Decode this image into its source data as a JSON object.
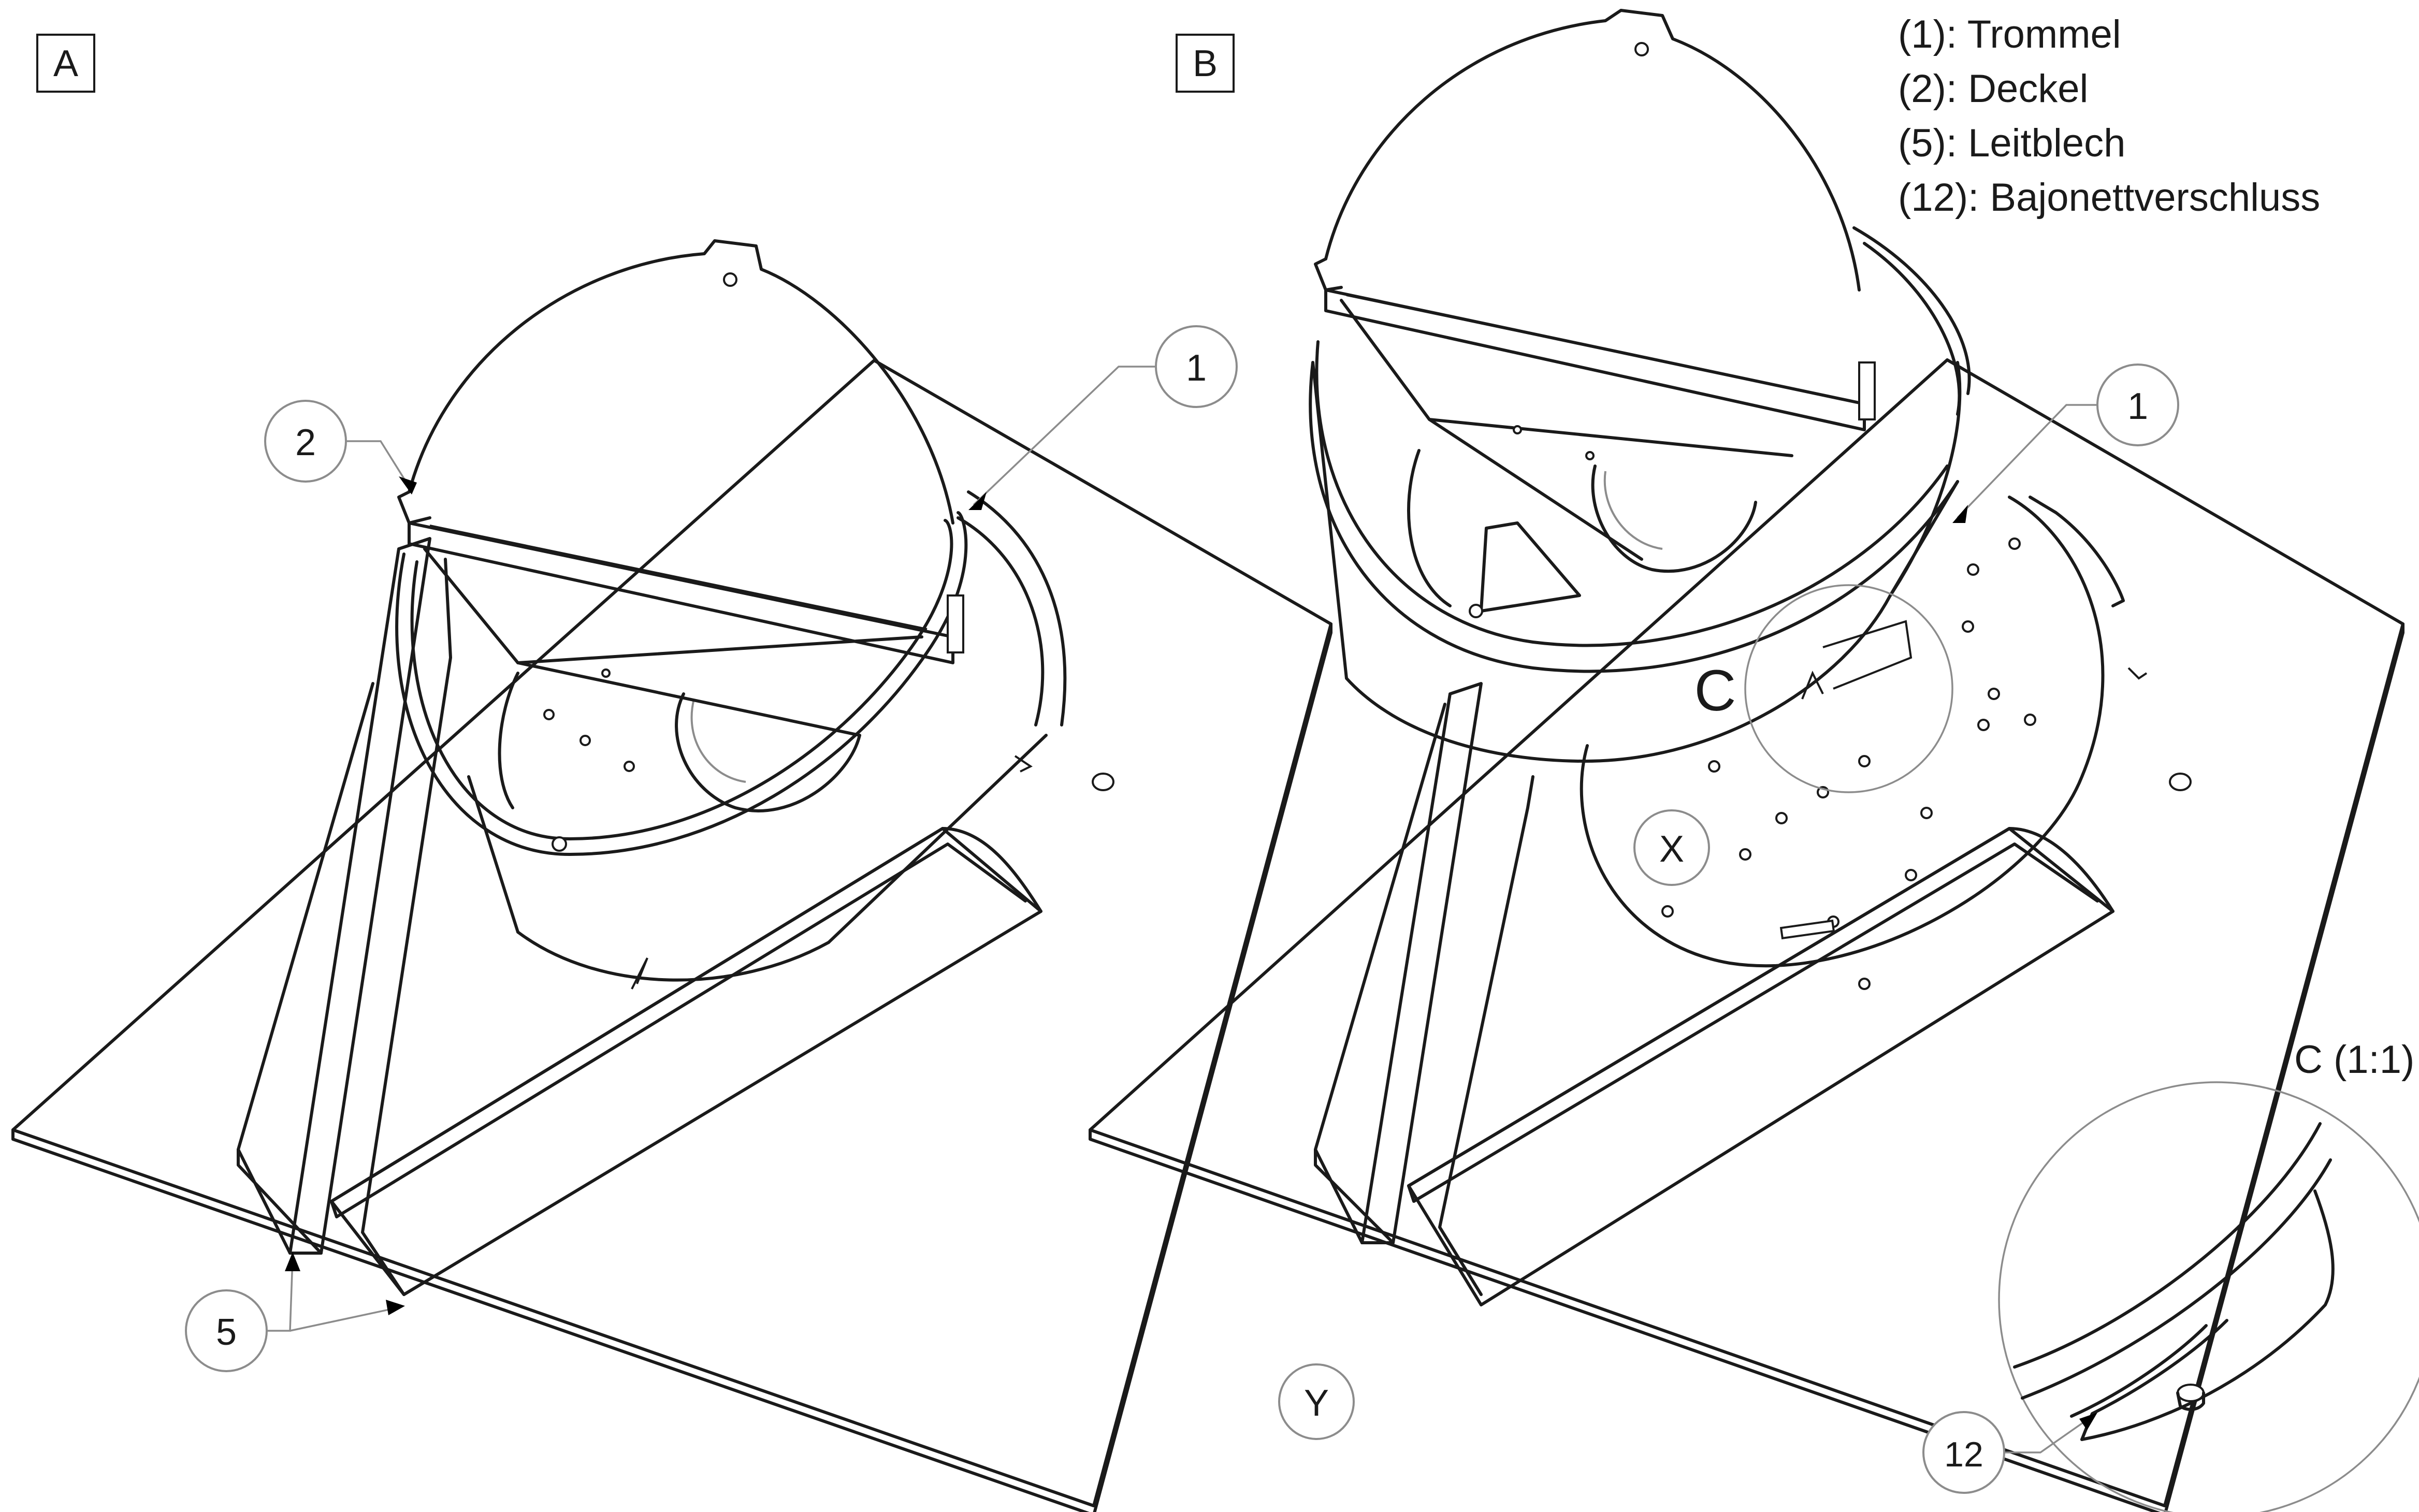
{
  "views": {
    "a": {
      "label": "A"
    },
    "b": {
      "label": "B"
    }
  },
  "legend": [
    "(1): Trommel",
    "(2): Deckel",
    "(5): Leitblech",
    "(12): Bajonettverschluss"
  ],
  "balloons": {
    "a_drum": "1",
    "a_lid": "2",
    "a_baffle": "5",
    "b_drum": "1",
    "bayonet": "12"
  },
  "markers": {
    "x": "X",
    "y": "Y",
    "detail": "C"
  },
  "detail_view": {
    "title": "C (1:1)"
  },
  "colors": {
    "line": "#1a1a1a",
    "leader": "#8c8c8c",
    "background": "#ffffff"
  }
}
